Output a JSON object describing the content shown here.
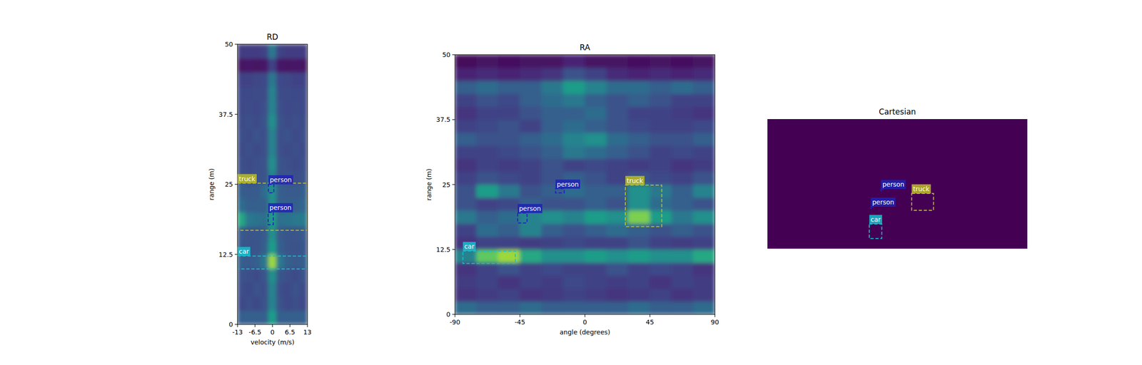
{
  "chart_data": [
    {
      "type": "heatmap",
      "title": "RD",
      "x_label": "velocity (m/s)",
      "y_label": "range (m)",
      "xlim": [
        -13,
        13
      ],
      "ylim": [
        0,
        50
      ],
      "xticks": [
        -13,
        -6.5,
        0,
        6.5,
        13
      ],
      "yticks": [
        0,
        12.5,
        25,
        37.5,
        50
      ],
      "cells": [
        [
          0.3,
          0.3,
          0.3,
          0.3,
          0.55,
          0.3,
          0.3,
          0.3,
          0.3
        ],
        [
          0.22,
          0.24,
          0.22,
          0.25,
          0.45,
          0.25,
          0.22,
          0.24,
          0.22
        ],
        [
          0.24,
          0.22,
          0.25,
          0.24,
          0.45,
          0.24,
          0.22,
          0.25,
          0.23
        ],
        [
          0.25,
          0.24,
          0.23,
          0.26,
          0.5,
          0.27,
          0.24,
          0.23,
          0.25
        ],
        [
          0.3,
          0.28,
          0.3,
          0.4,
          0.85,
          0.4,
          0.3,
          0.28,
          0.3
        ],
        [
          0.27,
          0.25,
          0.26,
          0.3,
          0.55,
          0.3,
          0.26,
          0.25,
          0.27
        ],
        [
          0.28,
          0.26,
          0.27,
          0.28,
          0.5,
          0.28,
          0.27,
          0.26,
          0.28
        ],
        [
          0.6,
          0.4,
          0.38,
          0.36,
          0.55,
          0.36,
          0.38,
          0.4,
          0.42
        ],
        [
          0.35,
          0.3,
          0.3,
          0.3,
          0.5,
          0.3,
          0.3,
          0.3,
          0.33
        ],
        [
          0.3,
          0.28,
          0.28,
          0.35,
          0.5,
          0.3,
          0.28,
          0.28,
          0.3
        ],
        [
          0.25,
          0.24,
          0.25,
          0.25,
          0.45,
          0.25,
          0.25,
          0.24,
          0.25
        ],
        [
          0.24,
          0.23,
          0.24,
          0.25,
          0.5,
          0.25,
          0.24,
          0.23,
          0.24
        ],
        [
          0.23,
          0.24,
          0.23,
          0.24,
          0.45,
          0.24,
          0.23,
          0.24,
          0.23
        ],
        [
          0.24,
          0.23,
          0.25,
          0.24,
          0.45,
          0.24,
          0.25,
          0.23,
          0.24
        ],
        [
          0.23,
          0.24,
          0.23,
          0.25,
          0.5,
          0.25,
          0.23,
          0.24,
          0.23
        ],
        [
          0.22,
          0.23,
          0.22,
          0.24,
          0.45,
          0.24,
          0.22,
          0.23,
          0.22
        ],
        [
          0.22,
          0.22,
          0.23,
          0.23,
          0.45,
          0.23,
          0.23,
          0.22,
          0.22
        ],
        [
          0.2,
          0.2,
          0.21,
          0.22,
          0.4,
          0.22,
          0.21,
          0.2,
          0.2
        ],
        [
          0.05,
          0.06,
          0.05,
          0.06,
          0.2,
          0.06,
          0.05,
          0.06,
          0.05
        ],
        [
          0.18,
          0.18,
          0.18,
          0.2,
          0.4,
          0.2,
          0.18,
          0.18,
          0.18
        ]
      ],
      "boxes": [
        {
          "label": "truck",
          "color": "#bcbd22",
          "x": [
            -13,
            13
          ],
          "y": [
            16.8,
            25.2
          ]
        },
        {
          "label": "person",
          "color": "#1f22b4",
          "x": [
            -1.5,
            0.5
          ],
          "y": [
            23.5,
            25
          ]
        },
        {
          "label": "person",
          "color": "#1f22b4",
          "x": [
            -1.6,
            0.3
          ],
          "y": [
            17.8,
            20
          ]
        },
        {
          "label": "car",
          "color": "#17becf",
          "x": [
            -13,
            13
          ],
          "y": [
            9.9,
            12.2
          ]
        }
      ]
    },
    {
      "type": "heatmap",
      "title": "RA",
      "x_label": "angle (degrees)",
      "y_label": "range (m)",
      "xlim": [
        -90,
        90
      ],
      "ylim": [
        0,
        50
      ],
      "xticks": [
        -90,
        -45,
        0,
        45,
        90
      ],
      "yticks": [
        0,
        12.5,
        25,
        37.5,
        50
      ],
      "cells": [
        [
          0.35,
          0.3,
          0.3,
          0.35,
          0.3,
          0.3,
          0.3,
          0.3,
          0.35,
          0.3,
          0.3,
          0.35
        ],
        [
          0.15,
          0.18,
          0.2,
          0.15,
          0.17,
          0.2,
          0.18,
          0.15,
          0.17,
          0.2,
          0.15,
          0.18
        ],
        [
          0.18,
          0.2,
          0.15,
          0.2,
          0.18,
          0.22,
          0.2,
          0.18,
          0.2,
          0.15,
          0.2,
          0.18
        ],
        [
          0.15,
          0.2,
          0.25,
          0.2,
          0.22,
          0.2,
          0.2,
          0.25,
          0.2,
          0.22,
          0.2,
          0.15
        ],
        [
          0.45,
          0.75,
          0.85,
          0.6,
          0.5,
          0.5,
          0.55,
          0.5,
          0.55,
          0.5,
          0.5,
          0.6
        ],
        [
          0.15,
          0.2,
          0.2,
          0.18,
          0.2,
          0.22,
          0.2,
          0.2,
          0.25,
          0.2,
          0.18,
          0.2
        ],
        [
          0.2,
          0.35,
          0.3,
          0.45,
          0.3,
          0.25,
          0.3,
          0.35,
          0.3,
          0.25,
          0.3,
          0.25
        ],
        [
          0.4,
          0.3,
          0.35,
          0.45,
          0.5,
          0.45,
          0.55,
          0.5,
          0.8,
          0.55,
          0.4,
          0.5
        ],
        [
          0.25,
          0.2,
          0.22,
          0.3,
          0.25,
          0.25,
          0.3,
          0.25,
          0.5,
          0.35,
          0.3,
          0.25
        ],
        [
          0.25,
          0.55,
          0.4,
          0.25,
          0.3,
          0.35,
          0.3,
          0.3,
          0.5,
          0.4,
          0.3,
          0.45
        ],
        [
          0.2,
          0.25,
          0.22,
          0.2,
          0.25,
          0.3,
          0.25,
          0.2,
          0.25,
          0.22,
          0.2,
          0.25
        ],
        [
          0.15,
          0.2,
          0.18,
          0.2,
          0.25,
          0.2,
          0.22,
          0.2,
          0.18,
          0.2,
          0.15,
          0.18
        ],
        [
          0.2,
          0.2,
          0.22,
          0.25,
          0.3,
          0.4,
          0.35,
          0.3,
          0.25,
          0.2,
          0.22,
          0.2
        ],
        [
          0.3,
          0.25,
          0.25,
          0.3,
          0.35,
          0.45,
          0.5,
          0.35,
          0.3,
          0.25,
          0.25,
          0.3
        ],
        [
          0.2,
          0.22,
          0.25,
          0.2,
          0.3,
          0.35,
          0.3,
          0.25,
          0.22,
          0.2,
          0.2,
          0.22
        ],
        [
          0.15,
          0.2,
          0.2,
          0.25,
          0.3,
          0.3,
          0.35,
          0.25,
          0.2,
          0.2,
          0.18,
          0.15
        ],
        [
          0.2,
          0.25,
          0.22,
          0.3,
          0.35,
          0.4,
          0.3,
          0.25,
          0.3,
          0.25,
          0.2,
          0.2
        ],
        [
          0.3,
          0.35,
          0.3,
          0.3,
          0.4,
          0.55,
          0.45,
          0.35,
          0.35,
          0.3,
          0.35,
          0.3
        ],
        [
          0.1,
          0.12,
          0.1,
          0.12,
          0.15,
          0.25,
          0.2,
          0.12,
          0.1,
          0.12,
          0.1,
          0.12
        ],
        [
          0.02,
          0.05,
          0.03,
          0.05,
          0.05,
          0.1,
          0.05,
          0.05,
          0.03,
          0.05,
          0.03,
          0.05
        ]
      ],
      "boxes": [
        {
          "label": "car",
          "color": "#17becf",
          "x": [
            -84.5,
            -48.2
          ],
          "y": [
            9.8,
            12.2
          ]
        },
        {
          "label": "person",
          "color": "#1f22b4",
          "x": [
            -46.6,
            -40.1
          ],
          "y": [
            17.6,
            19.5
          ]
        },
        {
          "label": "person",
          "color": "#1f22b4",
          "x": [
            -20.4,
            -14.4
          ],
          "y": [
            23.4,
            24.2
          ]
        },
        {
          "label": "truck",
          "color": "#bcbd22",
          "x": [
            28,
            53.2
          ],
          "y": [
            16.9,
            24.9
          ]
        }
      ]
    },
    {
      "type": "heatmap",
      "title": "Cartesian",
      "tick_labels": false,
      "xlim": [
        -50,
        50
      ],
      "ylim": [
        0,
        50
      ],
      "cells": [
        [
          0
        ]
      ],
      "boxes": [
        {
          "label": "person",
          "color": "#1f22b4",
          "x": [
            -6.3,
            -5.5
          ],
          "y": [
            22.3,
            23
          ]
        },
        {
          "label": "person",
          "color": "#1f22b4",
          "x": [
            -10.2,
            -9.4
          ],
          "y": [
            15.5,
            16.2
          ]
        },
        {
          "label": "truck",
          "color": "#bcbd22",
          "x": [
            5.5,
            13.9
          ],
          "y": [
            14.8,
            21.3
          ]
        },
        {
          "label": "car",
          "color": "#17becf",
          "x": [
            -10.8,
            -6
          ],
          "y": [
            3.9,
            9.5
          ]
        }
      ]
    }
  ]
}
